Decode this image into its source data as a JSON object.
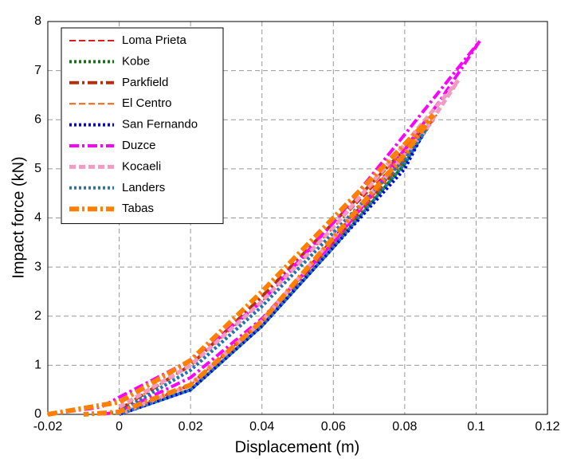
{
  "chart_data": {
    "type": "line",
    "xlabel": "Displacement (m)",
    "ylabel": "Impact force (kN)",
    "xlim": [
      -0.02,
      0.12
    ],
    "xticks": [
      -0.02,
      0,
      0.02,
      0.04,
      0.06,
      0.08,
      0.1,
      0.12
    ],
    "ylim": [
      0,
      8
    ],
    "yticks": [
      0,
      1,
      2,
      3,
      4,
      5,
      6,
      7,
      8
    ],
    "grid": true,
    "legend": "upper-left",
    "series": [
      {
        "name": "Loma Prieta",
        "color": "#e41a1c",
        "dash": "dashed",
        "width": 2,
        "x": [
          0,
          0.02,
          0.04,
          0.06,
          0.08,
          0.088,
          0.08,
          0.06,
          0.04,
          0.02,
          0
        ],
        "values": [
          0.1,
          1.0,
          2.3,
          3.8,
          5.3,
          6.0,
          5.3,
          3.6,
          1.9,
          0.6,
          0
        ]
      },
      {
        "name": "Kobe",
        "color": "#008000",
        "dash": "dotted",
        "width": 4,
        "x": [
          0,
          0.02,
          0.04,
          0.06,
          0.08,
          0.087,
          0.08,
          0.06,
          0.04,
          0.02,
          0
        ],
        "values": [
          0.05,
          0.9,
          2.2,
          3.7,
          5.2,
          5.9,
          5.1,
          3.4,
          1.8,
          0.5,
          0
        ]
      },
      {
        "name": "Parkfield",
        "color": "#b03010",
        "dash": "dashdot",
        "width": 4,
        "x": [
          0,
          0.02,
          0.04,
          0.06,
          0.08,
          0.088,
          0.08,
          0.06,
          0.04,
          0.02,
          0
        ],
        "values": [
          0.1,
          1.0,
          2.4,
          3.9,
          5.4,
          6.0,
          5.2,
          3.5,
          1.9,
          0.6,
          0
        ]
      },
      {
        "name": "El Centro",
        "color": "#f06010",
        "dash": "dashed",
        "width": 2,
        "x": [
          0,
          0.02,
          0.04,
          0.06,
          0.08,
          0.089,
          0.08,
          0.06,
          0.04,
          0.02,
          0
        ],
        "values": [
          0.1,
          1.0,
          2.3,
          3.8,
          5.4,
          6.1,
          5.2,
          3.5,
          1.9,
          0.6,
          0
        ]
      },
      {
        "name": "San Fernando",
        "color": "#0000ff",
        "dash": "dotted",
        "width": 4,
        "x": [
          0,
          0.02,
          0.04,
          0.06,
          0.08,
          0.085,
          0.08,
          0.06,
          0.04,
          0.02,
          0
        ],
        "values": [
          0.05,
          0.9,
          2.2,
          3.7,
          5.2,
          5.7,
          5.0,
          3.4,
          1.8,
          0.5,
          0
        ]
      },
      {
        "name": "Duzce",
        "color": "#ff00ff",
        "dash": "dashdot",
        "width": 4,
        "x": [
          -0.02,
          -0.005,
          0,
          0.02,
          0.04,
          0.06,
          0.08,
          0.101,
          0.09,
          0.07,
          0.06,
          0.04,
          0.02,
          0,
          -0.005
        ],
        "values": [
          0,
          0.15,
          0.35,
          1.1,
          2.3,
          3.9,
          5.7,
          7.6,
          6.4,
          4.4,
          3.5,
          1.95,
          0.75,
          0.05,
          0
        ]
      },
      {
        "name": "Kocaeli",
        "color": "#f49ac2",
        "dash": "dashed",
        "width": 5,
        "x": [
          0,
          0.02,
          0.04,
          0.06,
          0.08,
          0.095,
          0.085,
          0.06,
          0.04,
          0.02,
          0
        ],
        "values": [
          0.15,
          1.0,
          2.3,
          3.8,
          5.5,
          6.8,
          5.7,
          3.6,
          1.9,
          0.6,
          0
        ]
      },
      {
        "name": "Landers",
        "color": "#1f77b4",
        "dash": "dotted",
        "width": 4,
        "x": [
          0,
          0.02,
          0.04,
          0.06,
          0.08,
          0.086,
          0.08,
          0.06,
          0.04,
          0.02,
          0
        ],
        "values": [
          0.05,
          0.9,
          2.2,
          3.7,
          5.2,
          5.8,
          5.1,
          3.4,
          1.8,
          0.5,
          0
        ]
      },
      {
        "name": "Tabas",
        "color": "#ff8000",
        "dash": "dashdot",
        "width": 6,
        "x": [
          -0.02,
          0,
          0.02,
          0.04,
          0.06,
          0.08,
          0.088,
          0.08,
          0.06,
          0.04,
          0.02,
          0,
          -0.01
        ],
        "values": [
          0,
          0.25,
          1.1,
          2.5,
          4.0,
          5.5,
          6.1,
          5.3,
          3.6,
          1.9,
          0.6,
          0.05,
          0
        ]
      }
    ]
  }
}
